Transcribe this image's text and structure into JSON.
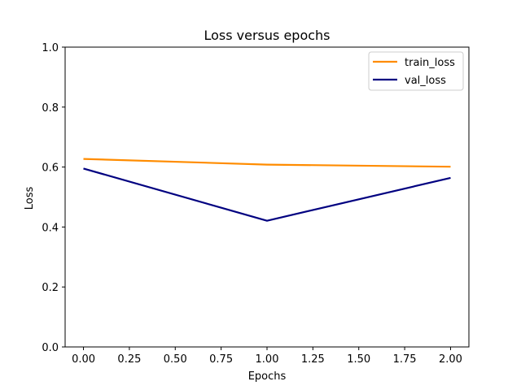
{
  "chart_data": {
    "type": "line",
    "title": "Loss versus epochs",
    "xlabel": "Epochs",
    "ylabel": "Loss",
    "xlim": [
      -0.1,
      2.1
    ],
    "ylim": [
      0.0,
      1.0
    ],
    "xticks": [
      "0.00",
      "0.25",
      "0.50",
      "0.75",
      "1.00",
      "1.25",
      "1.50",
      "1.75",
      "2.00"
    ],
    "yticks": [
      "0.0",
      "0.2",
      "0.4",
      "0.6",
      "0.8",
      "1.0"
    ],
    "grid": false,
    "legend_position": "top-right",
    "series": [
      {
        "name": "train_loss",
        "color": "#ff8c00",
        "x": [
          0,
          1,
          2
        ],
        "y": [
          0.627,
          0.608,
          0.601
        ]
      },
      {
        "name": "val_loss",
        "color": "#000080",
        "x": [
          0,
          1,
          2
        ],
        "y": [
          0.595,
          0.421,
          0.564
        ]
      }
    ]
  }
}
